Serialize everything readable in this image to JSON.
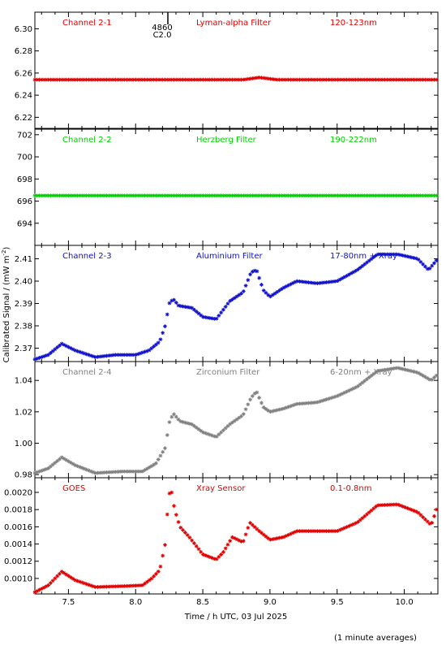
{
  "xlabel": "Time / h UTC, 03 Jul 2025",
  "ylabel": "Calibrated Signal / (mW m",
  "ylabel_sup": "-2",
  "ylabel_close": ")",
  "footnote": "(1 minute averages)",
  "marker": {
    "label_top": "4860",
    "label_bottom": "C2.0",
    "x": 8.24
  },
  "chart_data": [
    {
      "type": "scatter",
      "channel": "Channel 2-1",
      "filter": "Lyman-alpha Filter",
      "band": "120-123nm",
      "color": "#e00000",
      "xlim": [
        7.25,
        10.25
      ],
      "ylim": [
        6.21,
        6.315
      ],
      "yticks": [
        6.22,
        6.24,
        6.26,
        6.28,
        6.3
      ],
      "ytick_decimals": 2,
      "xticks": [
        7.5,
        8.0,
        8.5,
        9.0,
        9.5,
        10.0
      ],
      "points": [
        [
          7.25,
          6.254
        ],
        [
          8.8,
          6.254
        ],
        [
          8.92,
          6.256
        ],
        [
          9.05,
          6.254
        ],
        [
          10.25,
          6.254
        ]
      ]
    },
    {
      "type": "scatter",
      "channel": "Channel 2-2",
      "filter": "Herzberg Filter",
      "band": "190-222nm",
      "color": "#00d000",
      "xlim": [
        7.25,
        10.25
      ],
      "ylim": [
        692.0,
        702.5
      ],
      "yticks": [
        694,
        696,
        698,
        700,
        702
      ],
      "ytick_decimals": 0,
      "xticks": [
        7.5,
        8.0,
        8.5,
        9.0,
        9.5,
        10.0
      ],
      "points": [
        [
          7.25,
          696.5
        ],
        [
          10.25,
          696.5
        ]
      ]
    },
    {
      "type": "scatter",
      "channel": "Channel 2-3",
      "filter": "Aluminium Filter",
      "band": "17-80nm + Xray",
      "color": "#1010cc",
      "xlim": [
        7.25,
        10.25
      ],
      "ylim": [
        2.364,
        2.416
      ],
      "yticks": [
        2.37,
        2.38,
        2.39,
        2.4,
        2.41
      ],
      "ytick_decimals": 2,
      "xticks": [
        7.5,
        8.0,
        8.5,
        9.0,
        9.5,
        10.0
      ],
      "points": [
        [
          7.25,
          2.365
        ],
        [
          7.35,
          2.367
        ],
        [
          7.45,
          2.372
        ],
        [
          7.55,
          2.369
        ],
        [
          7.7,
          2.366
        ],
        [
          7.85,
          2.367
        ],
        [
          8.0,
          2.367
        ],
        [
          8.1,
          2.369
        ],
        [
          8.18,
          2.373
        ],
        [
          8.22,
          2.38
        ],
        [
          8.25,
          2.39
        ],
        [
          8.28,
          2.392
        ],
        [
          8.32,
          2.389
        ],
        [
          8.42,
          2.388
        ],
        [
          8.5,
          2.384
        ],
        [
          8.6,
          2.383
        ],
        [
          8.7,
          2.391
        ],
        [
          8.8,
          2.395
        ],
        [
          8.86,
          2.404
        ],
        [
          8.9,
          2.405
        ],
        [
          8.95,
          2.396
        ],
        [
          9.0,
          2.393
        ],
        [
          9.1,
          2.397
        ],
        [
          9.2,
          2.4
        ],
        [
          9.35,
          2.399
        ],
        [
          9.5,
          2.4
        ],
        [
          9.65,
          2.405
        ],
        [
          9.8,
          2.412
        ],
        [
          9.95,
          2.412
        ],
        [
          10.1,
          2.41
        ],
        [
          10.18,
          2.405
        ],
        [
          10.25,
          2.41
        ]
      ]
    },
    {
      "type": "scatter",
      "channel": "Channel 2-4",
      "filter": "Zirconium Filter",
      "band": "6-20nm + Xray",
      "color": "#808080",
      "xlim": [
        7.25,
        10.25
      ],
      "ylim": [
        0.978,
        1.052
      ],
      "yticks": [
        0.98,
        1.0,
        1.02,
        1.04
      ],
      "ytick_decimals": 2,
      "xticks": [
        7.5,
        8.0,
        8.5,
        9.0,
        9.5,
        10.0
      ],
      "points": [
        [
          7.25,
          0.981
        ],
        [
          7.35,
          0.984
        ],
        [
          7.45,
          0.991
        ],
        [
          7.55,
          0.986
        ],
        [
          7.7,
          0.981
        ],
        [
          7.9,
          0.982
        ],
        [
          8.05,
          0.982
        ],
        [
          8.15,
          0.987
        ],
        [
          8.22,
          0.997
        ],
        [
          8.25,
          1.013
        ],
        [
          8.28,
          1.019
        ],
        [
          8.33,
          1.014
        ],
        [
          8.42,
          1.012
        ],
        [
          8.5,
          1.007
        ],
        [
          8.6,
          1.004
        ],
        [
          8.7,
          1.012
        ],
        [
          8.8,
          1.018
        ],
        [
          8.86,
          1.029
        ],
        [
          8.9,
          1.033
        ],
        [
          8.95,
          1.023
        ],
        [
          9.0,
          1.02
        ],
        [
          9.1,
          1.022
        ],
        [
          9.2,
          1.025
        ],
        [
          9.35,
          1.026
        ],
        [
          9.5,
          1.03
        ],
        [
          9.65,
          1.036
        ],
        [
          9.8,
          1.046
        ],
        [
          9.95,
          1.048
        ],
        [
          10.1,
          1.045
        ],
        [
          10.2,
          1.04
        ],
        [
          10.25,
          1.044
        ]
      ]
    },
    {
      "type": "scatter",
      "channel": "GOES",
      "filter": "Xray Sensor",
      "band": "0.1-0.8nm",
      "color": "#e00000",
      "xlim": [
        7.25,
        10.25
      ],
      "ylim": [
        0.00082,
        0.00217
      ],
      "yticks": [
        0.001,
        0.0012,
        0.0014,
        0.0016,
        0.0018,
        0.002
      ],
      "ytick_decimals": 4,
      "xticks": [
        7.5,
        8.0,
        8.5,
        9.0,
        9.5,
        10.0
      ],
      "points": [
        [
          7.25,
          0.00084
        ],
        [
          7.35,
          0.00092
        ],
        [
          7.45,
          0.00108
        ],
        [
          7.55,
          0.00098
        ],
        [
          7.7,
          0.0009
        ],
        [
          7.9,
          0.00091
        ],
        [
          8.05,
          0.00092
        ],
        [
          8.12,
          0.001
        ],
        [
          8.18,
          0.0011
        ],
        [
          8.22,
          0.0014
        ],
        [
          8.24,
          0.00185
        ],
        [
          8.26,
          0.00208
        ],
        [
          8.29,
          0.0018
        ],
        [
          8.33,
          0.0016
        ],
        [
          8.4,
          0.00148
        ],
        [
          8.5,
          0.00128
        ],
        [
          8.6,
          0.00122
        ],
        [
          8.65,
          0.0013
        ],
        [
          8.72,
          0.00148
        ],
        [
          8.8,
          0.00142
        ],
        [
          8.85,
          0.00165
        ],
        [
          8.92,
          0.00155
        ],
        [
          9.0,
          0.00145
        ],
        [
          9.1,
          0.00148
        ],
        [
          9.2,
          0.00155
        ],
        [
          9.35,
          0.00155
        ],
        [
          9.5,
          0.00155
        ],
        [
          9.65,
          0.00165
        ],
        [
          9.8,
          0.00185
        ],
        [
          9.95,
          0.00186
        ],
        [
          10.1,
          0.00177
        ],
        [
          10.2,
          0.00162
        ],
        [
          10.25,
          0.00185
        ]
      ]
    }
  ]
}
